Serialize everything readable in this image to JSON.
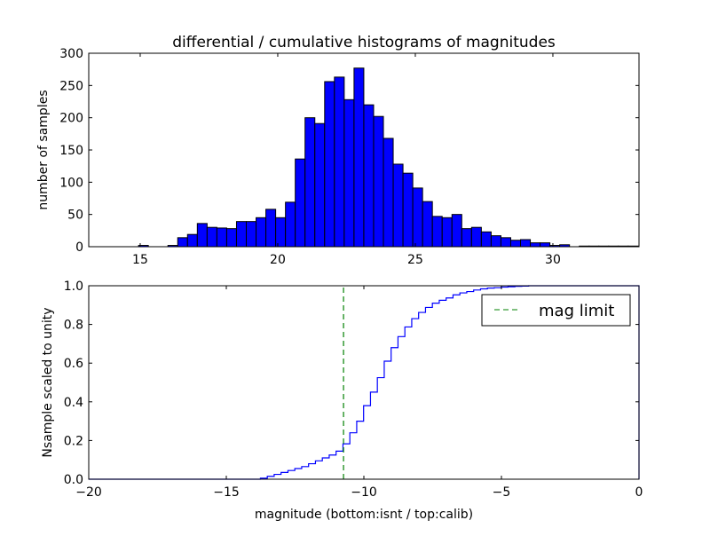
{
  "chart_data": [
    {
      "type": "bar",
      "title": "differential / cumulative histograms of magnitudes",
      "xlabel": "",
      "ylabel": "number of samples",
      "xlim": [
        13.13,
        33.13
      ],
      "ylim": [
        0,
        300
      ],
      "xticks": [
        "15",
        "20",
        "25",
        "30"
      ],
      "xtick_values": [
        15,
        20,
        25,
        30
      ],
      "yticks": [
        "0",
        "50",
        "100",
        "150",
        "200",
        "250",
        "300"
      ],
      "ytick_values": [
        0,
        50,
        100,
        150,
        200,
        250,
        300
      ],
      "bin_start": 14.94,
      "bin_width": 0.356,
      "values": [
        2,
        0,
        0,
        2,
        14,
        19,
        36,
        30,
        29,
        28,
        39,
        39,
        45,
        58,
        45,
        69,
        136,
        200,
        191,
        256,
        263,
        228,
        277,
        220,
        202,
        168,
        128,
        114,
        91,
        70,
        47,
        45,
        50,
        28,
        30,
        23,
        17,
        14,
        10,
        11,
        6,
        6,
        2,
        3,
        0,
        1,
        1,
        1,
        1,
        1,
        1
      ],
      "color": "#0000ff"
    },
    {
      "type": "line",
      "style": "step-cumulative",
      "xlabel": "magnitude (bottom:isnt / top:calib)",
      "ylabel": "Nsample scaled to unity",
      "xlim": [
        -20,
        0
      ],
      "ylim": [
        0,
        1
      ],
      "xticks": [
        "−20",
        "−15",
        "−10",
        "−5",
        "0"
      ],
      "xtick_values": [
        -20,
        -15,
        -10,
        -5,
        0
      ],
      "yticks": [
        "0.0",
        "0.2",
        "0.4",
        "0.6",
        "0.8",
        "1.0"
      ],
      "ytick_values": [
        0,
        0.2,
        0.4,
        0.6,
        0.8,
        1.0
      ],
      "step_start": -13.76,
      "step_width": 0.25,
      "cumulative": [
        0.005,
        0.015,
        0.025,
        0.035,
        0.045,
        0.055,
        0.065,
        0.08,
        0.095,
        0.11,
        0.125,
        0.145,
        0.183,
        0.24,
        0.3,
        0.38,
        0.45,
        0.525,
        0.61,
        0.68,
        0.737,
        0.787,
        0.83,
        0.862,
        0.888,
        0.91,
        0.925,
        0.937,
        0.953,
        0.963,
        0.97,
        0.978,
        0.984,
        0.988,
        0.99,
        0.993,
        0.995,
        0.997,
        0.998,
        1.0
      ],
      "line_color": "#0000ff",
      "mag_limit": -10.74,
      "mag_limit_color": "#008000",
      "legend": {
        "label": "mag limit",
        "placement": "top-right"
      }
    }
  ]
}
